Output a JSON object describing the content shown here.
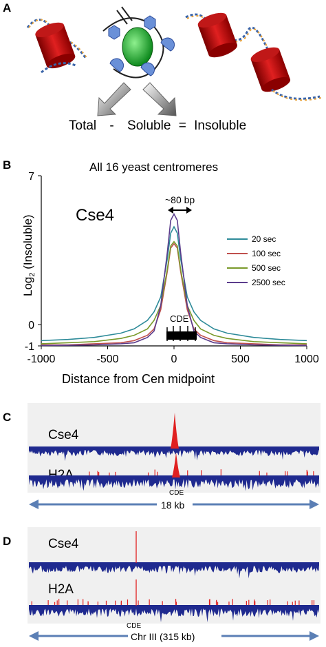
{
  "panelA": {
    "letter": "A",
    "equation": [
      "Total",
      "-",
      "Soluble",
      "=",
      "Insoluble"
    ]
  },
  "panelB": {
    "letter": "B",
    "title": "All 16 yeast centromeres",
    "protein_label": "Cse4",
    "annotation": "~80 bp",
    "cde_label": "CDE",
    "ylabel_main": "Log",
    "ylabel_sub": "2",
    "ylabel_rest": " (Insoluble)",
    "xlabel": "Distance from Cen midpoint",
    "legend": [
      {
        "label": "20 sec",
        "color": "#2e8b99"
      },
      {
        "label": "100 sec",
        "color": "#c0504d"
      },
      {
        "label": "500 sec",
        "color": "#7a9a2a"
      },
      {
        "label": "2500 sec",
        "color": "#5b3c8c"
      }
    ]
  },
  "chart_data": {
    "type": "line",
    "title": "All 16 yeast centromeres",
    "xlabel": "Distance from Cen midpoint",
    "ylabel": "Log2 (Insoluble)",
    "xlim": [
      -1000,
      1000
    ],
    "ylim": [
      -1,
      7
    ],
    "xticks": [
      "-1000",
      "-500",
      "0",
      "500",
      "1000"
    ],
    "yticks": [
      "7",
      "0",
      "-1"
    ],
    "x": [
      -1000,
      -800,
      -600,
      -400,
      -300,
      -200,
      -150,
      -100,
      -50,
      -25,
      0,
      25,
      50,
      100,
      150,
      200,
      300,
      400,
      600,
      800,
      1000
    ],
    "series": [
      {
        "name": "20 sec",
        "color": "#2e8b99",
        "values": [
          -0.75,
          -0.7,
          -0.6,
          -0.4,
          -0.2,
          0.2,
          0.6,
          1.3,
          3.1,
          4.3,
          4.6,
          4.3,
          3.1,
          1.3,
          0.6,
          0.2,
          -0.2,
          -0.4,
          -0.6,
          -0.7,
          -0.75
        ]
      },
      {
        "name": "100 sec",
        "color": "#c0504d",
        "values": [
          -0.95,
          -0.95,
          -0.9,
          -0.85,
          -0.75,
          -0.5,
          -0.2,
          0.7,
          2.5,
          3.6,
          3.8,
          3.6,
          2.5,
          0.7,
          -0.2,
          -0.5,
          -0.75,
          -0.85,
          -0.9,
          -0.95,
          -0.95
        ]
      },
      {
        "name": "500 sec",
        "color": "#7a9a2a",
        "values": [
          -0.9,
          -0.85,
          -0.8,
          -0.65,
          -0.5,
          -0.2,
          0.2,
          0.9,
          2.6,
          3.7,
          3.9,
          3.7,
          2.6,
          0.9,
          0.2,
          -0.2,
          -0.5,
          -0.65,
          -0.8,
          -0.85,
          -0.9
        ]
      },
      {
        "name": "2500 sec",
        "color": "#5b3c8c",
        "values": [
          -0.98,
          -0.97,
          -0.95,
          -0.9,
          -0.85,
          -0.6,
          -0.3,
          0.9,
          3.4,
          4.9,
          5.2,
          4.9,
          3.4,
          0.9,
          -0.3,
          -0.6,
          -0.85,
          -0.9,
          -0.95,
          -0.97,
          -0.98
        ]
      }
    ]
  },
  "panelC": {
    "letter": "C",
    "track1": "Cse4",
    "track2": "H2A",
    "cde_label": "CDE",
    "scale": "18 kb"
  },
  "panelD": {
    "letter": "D",
    "track1": "Cse4",
    "track2": "H2A",
    "cde_label": "CDE",
    "scale": "Chr III (315 kb)"
  },
  "colors": {
    "track_fill": "#1f2a8f",
    "peak": "#e02020",
    "scale_arrow": "#5b7fb5"
  }
}
